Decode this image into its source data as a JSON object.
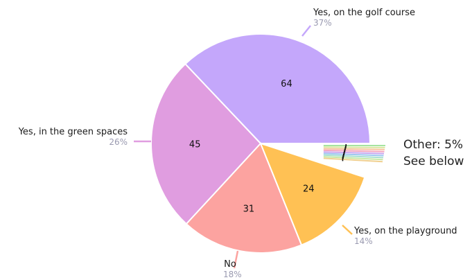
{
  "chart_data": {
    "type": "pie",
    "slices": [
      {
        "label": "Yes, on the golf course",
        "value": 64,
        "percent": "37%",
        "color": "#c4a7fb"
      },
      {
        "label": "Yes, on the playground",
        "value": 24,
        "percent": "14%",
        "color": "#ffc154"
      },
      {
        "label": "No",
        "value": 31,
        "percent": "18%",
        "color": "#fca3a0"
      },
      {
        "label": "Yes, in the green spaces",
        "value": 45,
        "percent": "26%",
        "color": "#e09de0"
      }
    ],
    "other": {
      "line1": "Other: 5%",
      "line2": "See below",
      "value_share": 0.05,
      "colors": [
        "#a6e3a1",
        "#d9e7a0",
        "#f7c3a0",
        "#f4a6c0",
        "#c9a8f0",
        "#9fc7f0",
        "#a8e0d0",
        "#c6e8a6",
        "#f0d090"
      ]
    },
    "label_color": "#9a9ab0"
  }
}
